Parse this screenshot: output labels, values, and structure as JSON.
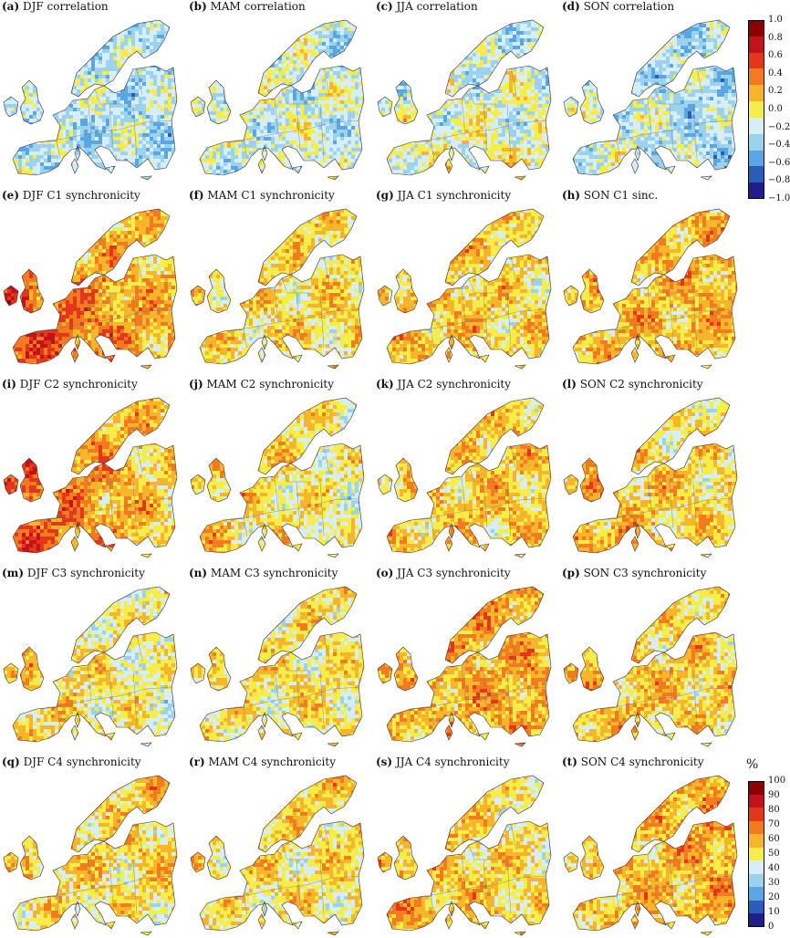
{
  "panels": [
    {
      "tag": "(a)",
      "title": "DJF correlation",
      "palette": "corr",
      "base": 0.36,
      "wx": 0.0,
      "wy": 0.0
    },
    {
      "tag": "(b)",
      "title": "MAM correlation",
      "palette": "corr",
      "base": 0.4,
      "wx": 0.0,
      "wy": 0.0
    },
    {
      "tag": "(c)",
      "title": "JJA correlation",
      "palette": "corr",
      "base": 0.42,
      "wx": 0.0,
      "wy": 0.06
    },
    {
      "tag": "(d)",
      "title": "SON correlation",
      "palette": "corr",
      "base": 0.38,
      "wx": -0.04,
      "wy": 0.0
    },
    {
      "tag": "(e)",
      "title": "DJF C1 synchronicity",
      "palette": "sync",
      "base": 0.64,
      "wx": -0.1,
      "wy": 0.04
    },
    {
      "tag": "(f)",
      "title": "MAM C1 synchronicity",
      "palette": "sync",
      "base": 0.52,
      "wx": 0.0,
      "wy": 0.0
    },
    {
      "tag": "(g)",
      "title": "JJA C1 synchronicity",
      "palette": "sync",
      "base": 0.55,
      "wx": -0.04,
      "wy": 0.0
    },
    {
      "tag": "(h)",
      "title": "SON C1 sinc.",
      "palette": "sync",
      "base": 0.58,
      "wx": 0.0,
      "wy": -0.02
    },
    {
      "tag": "(i)",
      "title": "DJF C2 synchronicity",
      "palette": "sync",
      "base": 0.63,
      "wx": -0.12,
      "wy": 0.0
    },
    {
      "tag": "(j)",
      "title": "MAM C2 synchronicity",
      "palette": "sync",
      "base": 0.51,
      "wx": -0.06,
      "wy": 0.0
    },
    {
      "tag": "(k)",
      "title": "JJA C2 synchronicity",
      "palette": "sync",
      "base": 0.55,
      "wx": 0.0,
      "wy": 0.0
    },
    {
      "tag": "(l)",
      "title": "SON C2 synchronicity",
      "palette": "sync",
      "base": 0.55,
      "wx": -0.06,
      "wy": 0.02
    },
    {
      "tag": "(m)",
      "title": "DJF C3 synchronicity",
      "palette": "sync",
      "base": 0.5,
      "wx": -0.06,
      "wy": 0.0
    },
    {
      "tag": "(n)",
      "title": "MAM C3 synchronicity",
      "palette": "sync",
      "base": 0.5,
      "wx": 0.0,
      "wy": 0.0
    },
    {
      "tag": "(o)",
      "title": "JJA C3 synchronicity",
      "palette": "sync",
      "base": 0.6,
      "wx": 0.0,
      "wy": -0.02
    },
    {
      "tag": "(p)",
      "title": "SON C3 synchronicity",
      "palette": "sync",
      "base": 0.56,
      "wx": -0.04,
      "wy": 0.0
    },
    {
      "tag": "(q)",
      "title": "DJF C4 synchronicity",
      "palette": "sync",
      "base": 0.53,
      "wx": 0.0,
      "wy": -0.04
    },
    {
      "tag": "(r)",
      "title": "MAM C4 synchronicity",
      "palette": "sync",
      "base": 0.52,
      "wx": 0.0,
      "wy": -0.02
    },
    {
      "tag": "(s)",
      "title": "JJA C4 synchronicity",
      "palette": "sync",
      "base": 0.55,
      "wx": -0.06,
      "wy": 0.03
    },
    {
      "tag": "(t)",
      "title": "SON C4 synchronicity",
      "palette": "sync",
      "base": 0.58,
      "wx": 0.04,
      "wy": -0.02
    }
  ],
  "colorbar_corr": {
    "ticks": [
      "1.0",
      "0.8",
      "0.6",
      "0.4",
      "0.2",
      "0.0",
      "−0.2",
      "−0.4",
      "−0.6",
      "−0.8",
      "−1.0"
    ],
    "colors": [
      "#8b0000",
      "#c2121b",
      "#e3361a",
      "#f27a1f",
      "#f7b52b",
      "#f6ec4a",
      "#d8eef6",
      "#9bd3ef",
      "#5aa6e0",
      "#2b5db5",
      "#1f1f87"
    ]
  },
  "colorbar_sync": {
    "unit": "%",
    "ticks": [
      "100",
      "90",
      "80",
      "70",
      "60",
      "50",
      "40",
      "30",
      "20",
      "10",
      "0"
    ],
    "colors": [
      "#8b0000",
      "#c2121b",
      "#e3361a",
      "#f27a1f",
      "#f7b52b",
      "#f6ec4a",
      "#d8eef6",
      "#9bd3ef",
      "#5aa6e0",
      "#2b5db5",
      "#1f1f87"
    ]
  }
}
